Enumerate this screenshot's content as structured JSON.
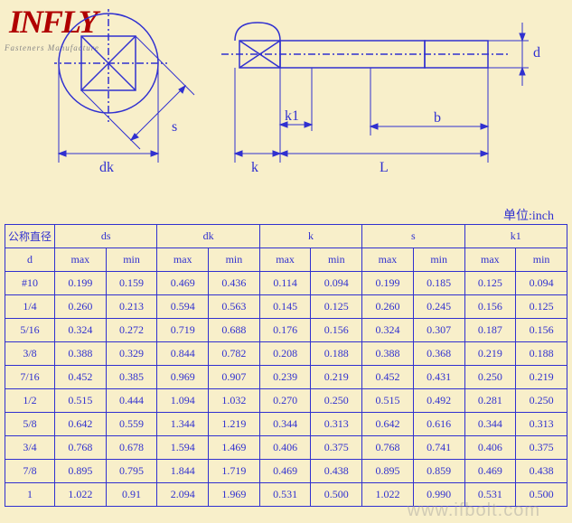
{
  "logo": {
    "text": "INFLY",
    "subtitle": "Fasteners Manufacture"
  },
  "unit_label": "单位:inch",
  "watermark": "www.ifbolt.com",
  "diagram": {
    "labels": {
      "dk": "dk",
      "s": "s",
      "k": "k",
      "k1": "k1",
      "L": "L",
      "b": "b",
      "d": "d"
    },
    "stroke": "#3030d0",
    "stroke_width": 1.5
  },
  "table": {
    "header1": {
      "d": "公称直径",
      "cols": [
        "ds",
        "dk",
        "k",
        "s",
        "k1"
      ]
    },
    "header2": {
      "d": "d",
      "sub": [
        "max",
        "min"
      ]
    },
    "rows": [
      {
        "d": "#10",
        "vals": [
          "0.199",
          "0.159",
          "0.469",
          "0.436",
          "0.114",
          "0.094",
          "0.199",
          "0.185",
          "0.125",
          "0.094"
        ]
      },
      {
        "d": "1/4",
        "vals": [
          "0.260",
          "0.213",
          "0.594",
          "0.563",
          "0.145",
          "0.125",
          "0.260",
          "0.245",
          "0.156",
          "0.125"
        ]
      },
      {
        "d": "5/16",
        "vals": [
          "0.324",
          "0.272",
          "0.719",
          "0.688",
          "0.176",
          "0.156",
          "0.324",
          "0.307",
          "0.187",
          "0.156"
        ]
      },
      {
        "d": "3/8",
        "vals": [
          "0.388",
          "0.329",
          "0.844",
          "0.782",
          "0.208",
          "0.188",
          "0.388",
          "0.368",
          "0.219",
          "0.188"
        ]
      },
      {
        "d": "7/16",
        "vals": [
          "0.452",
          "0.385",
          "0.969",
          "0.907",
          "0.239",
          "0.219",
          "0.452",
          "0.431",
          "0.250",
          "0.219"
        ]
      },
      {
        "d": "1/2",
        "vals": [
          "0.515",
          "0.444",
          "1.094",
          "1.032",
          "0.270",
          "0.250",
          "0.515",
          "0.492",
          "0.281",
          "0.250"
        ]
      },
      {
        "d": "5/8",
        "vals": [
          "0.642",
          "0.559",
          "1.344",
          "1.219",
          "0.344",
          "0.313",
          "0.642",
          "0.616",
          "0.344",
          "0.313"
        ]
      },
      {
        "d": "3/4",
        "vals": [
          "0.768",
          "0.678",
          "1.594",
          "1.469",
          "0.406",
          "0.375",
          "0.768",
          "0.741",
          "0.406",
          "0.375"
        ]
      },
      {
        "d": "7/8",
        "vals": [
          "0.895",
          "0.795",
          "1.844",
          "1.719",
          "0.469",
          "0.438",
          "0.895",
          "0.859",
          "0.469",
          "0.438"
        ]
      },
      {
        "d": "1",
        "vals": [
          "1.022",
          "0.91",
          "2.094",
          "1.969",
          "0.531",
          "0.500",
          "1.022",
          "0.990",
          "0.531",
          "0.500"
        ]
      }
    ]
  }
}
